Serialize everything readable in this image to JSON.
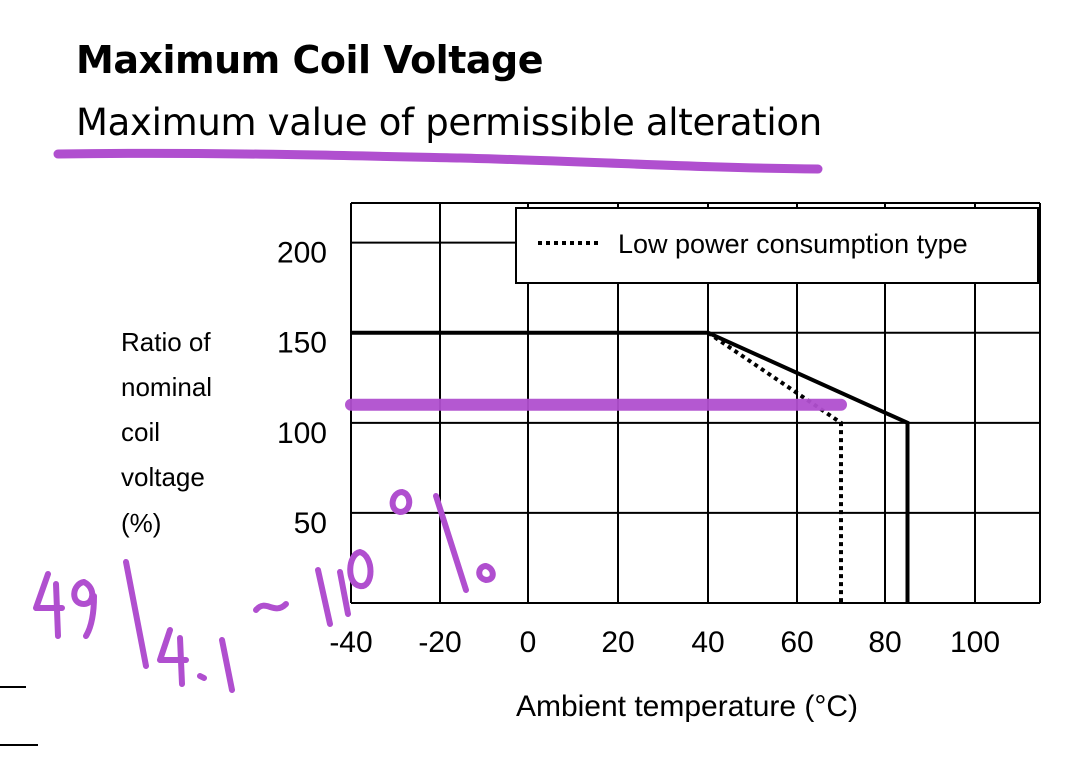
{
  "header": {
    "title": "Maximum Coil Voltage",
    "subtitle": "Maximum value of permissible alteration"
  },
  "handwriting": {
    "text": "49/4.1~110%",
    "color": "#b04fcf"
  },
  "chart_data": {
    "type": "line",
    "xlabel": "Ambient temperature (°C)",
    "ylabel_lines": [
      "Ratio   of",
      "nominal",
      "coil",
      "voltage",
      "(%)"
    ],
    "x_ticks": [
      -40,
      -20,
      0,
      20,
      40,
      60,
      80,
      100
    ],
    "x_tick_labels": [
      "-40",
      "-20",
      "0",
      "20",
      "40",
      "60",
      "80",
      "100"
    ],
    "y_ticks": [
      50,
      100,
      150,
      200
    ],
    "y_tick_labels": [
      "50",
      "100",
      "150",
      "200"
    ],
    "xlim": [
      -40,
      110
    ],
    "ylim": [
      0,
      222
    ],
    "grid": true,
    "legend_position": "top-right",
    "series": [
      {
        "style": "solid",
        "color": "#000000",
        "x": [
          -40,
          40,
          85,
          85
        ],
        "y": [
          150,
          150,
          100,
          0
        ]
      },
      {
        "name": "Low power consumption type",
        "style": "dotted",
        "color": "#000000",
        "x": [
          40,
          70,
          70
        ],
        "y": [
          150,
          100,
          0
        ]
      }
    ],
    "annotation": {
      "label": "highlighted ratio line",
      "color": "#b04fcf",
      "x": [
        -40,
        70
      ],
      "y": [
        110,
        110
      ]
    }
  }
}
